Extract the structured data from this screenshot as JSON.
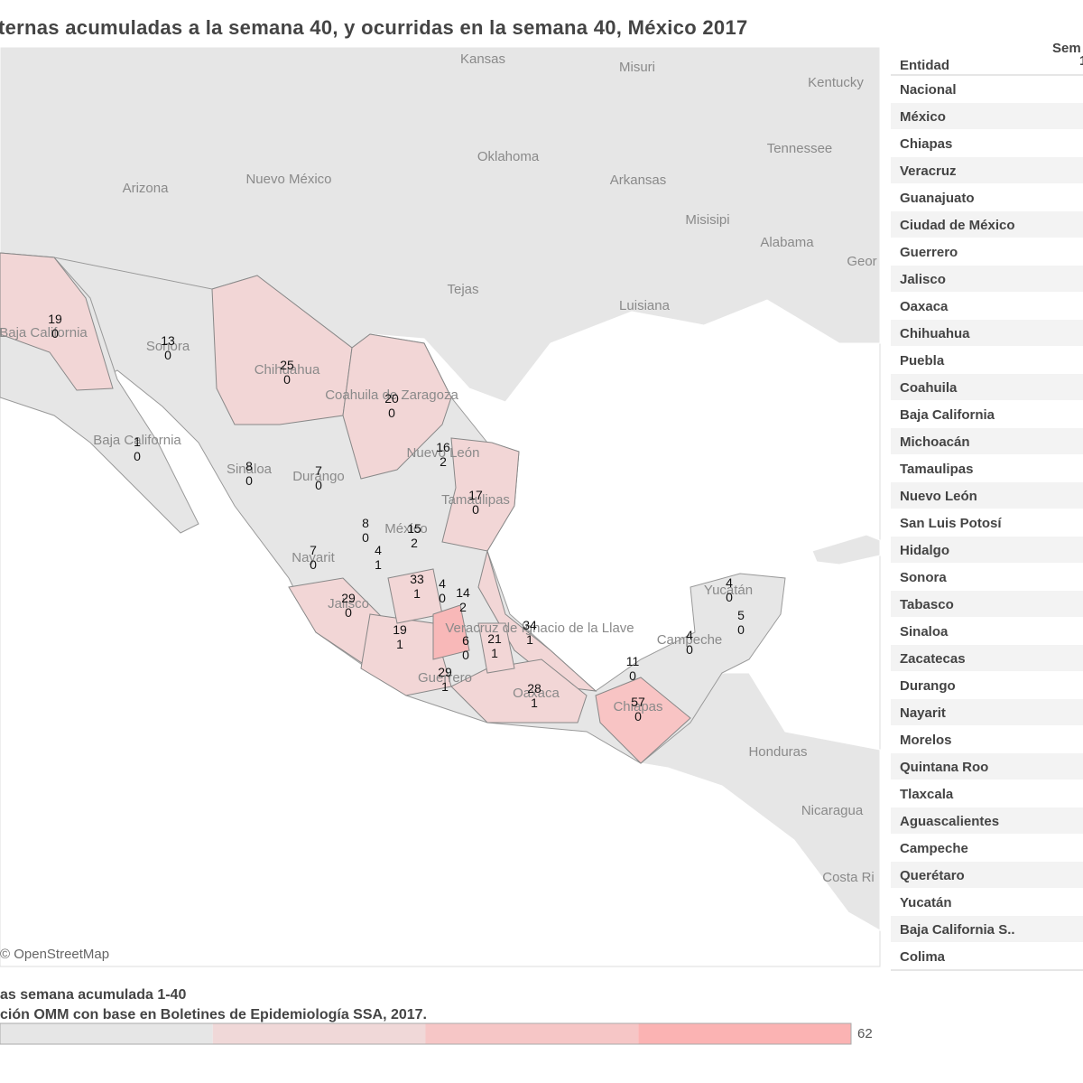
{
  "header": {
    "title": "ternas acumuladas a la semana 40, y ocurridas en la semana 40, México 2017"
  },
  "map": {
    "place_labels": [
      "Kansas",
      "Misuri",
      "Kentucky",
      "Oklahoma",
      "Tennessee",
      "Arizona",
      "Nuevo México",
      "Arkansas",
      "Misisipi",
      "Alabama",
      "Geor",
      "Tejas",
      "Luisiana",
      "Baja California",
      "Sonora",
      "Chihuahua",
      "Coahuila de Zaragoza",
      "Baja California",
      "Nuevo León",
      "Tamaulipas",
      "Durango",
      "Sinaloa",
      "México",
      "Nayarit",
      "Jalisco",
      "Veracruz de Ignacio de la Llave",
      "Guerrero",
      "Oaxaca",
      "Chiapas",
      "Campeche",
      "Yucatán",
      "Honduras",
      "Nicaragua",
      "Costa Ri"
    ],
    "number_labels": [
      {
        "cumulative": 19,
        "week40": 0
      },
      {
        "cumulative": 13,
        "week40": 0
      },
      {
        "cumulative": 25,
        "week40": 0
      },
      {
        "cumulative": 20,
        "week40": 0
      },
      {
        "cumulative": 1,
        "week40": 0
      },
      {
        "cumulative": 8,
        "week40": 0
      },
      {
        "cumulative": 7,
        "week40": 0
      },
      {
        "cumulative": 16,
        "week40": 2
      },
      {
        "cumulative": 17,
        "week40": 0
      },
      {
        "cumulative": 8,
        "week40": 0
      },
      {
        "cumulative": 15,
        "week40": 2
      },
      {
        "cumulative": 7,
        "week40": 0
      },
      {
        "cumulative": 4,
        "week40": 1
      },
      {
        "cumulative": 33,
        "week40": 1
      },
      {
        "cumulative": 4,
        "week40": 0
      },
      {
        "cumulative": 14,
        "week40": 2
      },
      {
        "cumulative": 29,
        "week40": 0
      },
      {
        "cumulative": 34,
        "week40": 1
      },
      {
        "cumulative": 19,
        "week40": 1
      },
      {
        "cumulative": 6,
        "week40": 0
      },
      {
        "cumulative": 21,
        "week40": 1
      },
      {
        "cumulative": 29,
        "week40": 1
      },
      {
        "cumulative": 28,
        "week40": 1
      },
      {
        "cumulative": 11,
        "week40": 0
      },
      {
        "cumulative": 57,
        "week40": 0
      },
      {
        "cumulative": 4,
        "week40": 0
      },
      {
        "cumulative": 4,
        "week40": 0
      },
      {
        "cumulative": 5,
        "week40": 0
      }
    ],
    "attribution": "© OpenStreetMap"
  },
  "table": {
    "columns": [
      "Entidad",
      "Sem",
      "1"
    ],
    "rows": [
      "Nacional",
      "México",
      "Chiapas",
      "Veracruz",
      "Guanajuato",
      "Ciudad de México",
      "Guerrero",
      "Jalisco",
      "Oaxaca",
      "Chihuahua",
      "Puebla",
      "Coahuila",
      "Baja California",
      "Michoacán",
      "Tamaulipas",
      "Nuevo León",
      "San Luis Potosí",
      "Hidalgo",
      "Sonora",
      "Tabasco",
      "Sinaloa",
      "Zacatecas",
      "Durango",
      "Nayarit",
      "Morelos",
      "Quintana Roo",
      "Tlaxcala",
      "Aguascalientes",
      "Campeche",
      "Querétaro",
      "Yucatán",
      "Baja California S..",
      "Colima"
    ]
  },
  "footer": {
    "line1": "as semana acumulada 1-40",
    "line2": "ción OMM con base en Boletines de Epidemiología SSA, 2017.",
    "legend_max": 62,
    "legend_colors": [
      "#e6e6e6",
      "#f0d8d8",
      "#f6c6c6",
      "#fbb3b3"
    ]
  }
}
